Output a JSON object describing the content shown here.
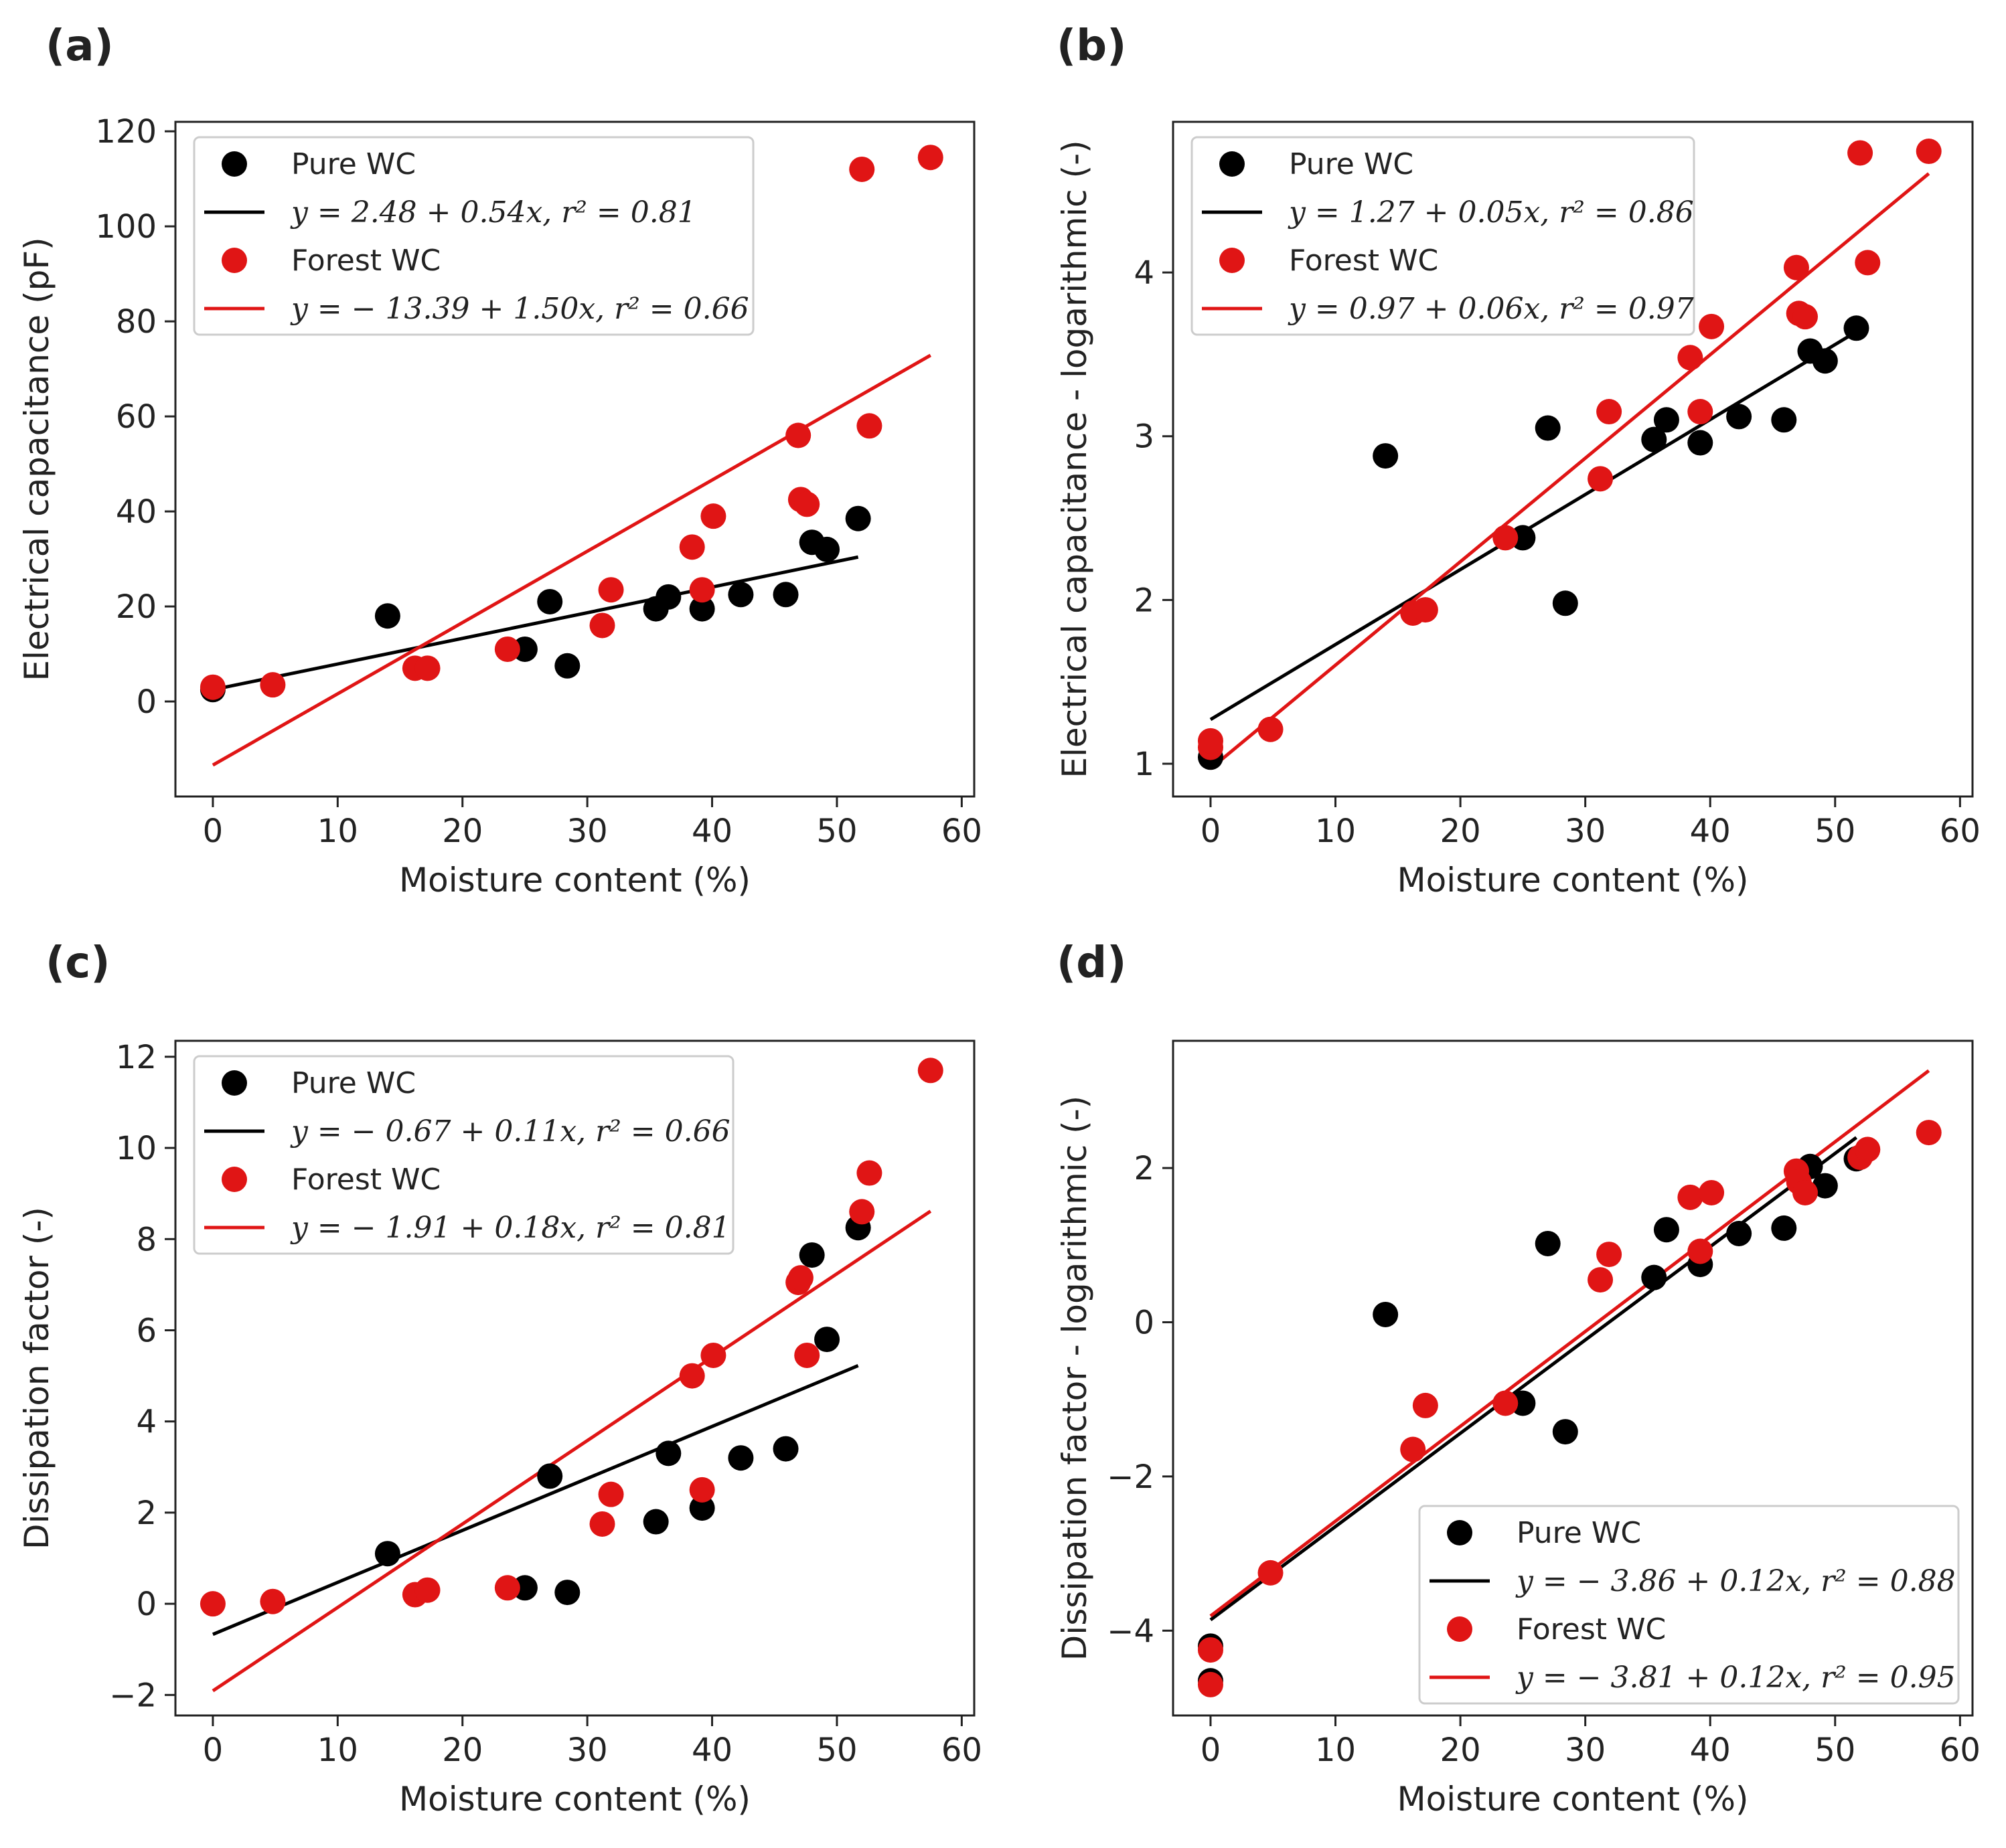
{
  "colors": {
    "pure": "#000000",
    "forest": "#e01515",
    "axis": "#222222",
    "legend_border": "#cccccc"
  },
  "chart_data": [
    {
      "id": "a",
      "type": "scatter",
      "panel_label": "(a)",
      "xlabel": "Moisture content (%)",
      "ylabel": "Electrical capacitance (pF)",
      "xlim": [
        -3,
        61
      ],
      "ylim": [
        -20,
        122
      ],
      "xticks": [
        0,
        10,
        20,
        30,
        40,
        50,
        60
      ],
      "yticks": [
        0,
        20,
        40,
        60,
        80,
        100,
        120
      ],
      "ytick_labels": [
        "0",
        "20",
        "40",
        "60",
        "80",
        "100",
        "120"
      ],
      "legend_position": "top-left",
      "series": [
        {
          "name": "Pure WC",
          "color_key": "pure",
          "x": [
            0,
            14,
            25,
            27,
            28.4,
            35.5,
            36.5,
            39.2,
            42.3,
            45.9,
            48,
            49.2,
            51.7
          ],
          "y": [
            2.5,
            18,
            11,
            21,
            7.5,
            19.5,
            22,
            19.5,
            22.5,
            22.5,
            33.5,
            32,
            38.5
          ],
          "fit_label": "y = 2.48 + 0.54x, r² = 0.81",
          "fit": {
            "intercept": 2.48,
            "slope": 0.54,
            "x_range": [
              0,
              51.7
            ]
          }
        },
        {
          "name": "Forest WC",
          "color_key": "forest",
          "x": [
            0,
            4.8,
            16.2,
            17.2,
            23.6,
            31.2,
            31.9,
            38.4,
            39.2,
            40.1,
            46.9,
            47.1,
            47.6,
            52,
            52.6,
            57.5
          ],
          "y": [
            3,
            3.5,
            7,
            7,
            11,
            16,
            23.5,
            32.5,
            23.5,
            39,
            56,
            42.5,
            41.5,
            112,
            58,
            114.5
          ],
          "fit_label": "y = − 13.39 + 1.50x, r² = 0.66",
          "fit": {
            "intercept": -13.39,
            "slope": 1.5,
            "x_range": [
              0,
              57.5
            ]
          }
        }
      ]
    },
    {
      "id": "b",
      "type": "scatter",
      "panel_label": "(b)",
      "xlabel": "Moisture content (%)",
      "ylabel": "Electrical capacitance - logarithmic (-)",
      "xlim": [
        -3,
        61
      ],
      "ylim": [
        0.8,
        4.92
      ],
      "xticks": [
        0,
        10,
        20,
        30,
        40,
        50,
        60
      ],
      "yticks": [
        1,
        2,
        3,
        4
      ],
      "ytick_labels": [
        "1",
        "2",
        "3",
        "4"
      ],
      "legend_position": "top-left",
      "series": [
        {
          "name": "Pure WC",
          "color_key": "pure",
          "x": [
            0,
            14,
            25,
            27,
            28.4,
            35.5,
            36.5,
            39.2,
            42.3,
            45.9,
            48,
            49.2,
            51.7
          ],
          "y": [
            1.04,
            2.88,
            2.38,
            3.05,
            1.98,
            2.98,
            3.1,
            2.96,
            3.12,
            3.1,
            3.52,
            3.46,
            3.66
          ],
          "fit_label": "y = 1.27 + 0.05x, r² = 0.86",
          "fit": {
            "intercept": 1.27,
            "slope": 0.0458,
            "x_range": [
              0,
              51.7
            ]
          }
        },
        {
          "name": "Forest WC",
          "color_key": "forest",
          "x": [
            0,
            0,
            4.8,
            16.2,
            17.2,
            23.6,
            31.2,
            31.9,
            38.4,
            39.2,
            40.1,
            46.9,
            47.1,
            47.6,
            52,
            52.6,
            57.5
          ],
          "y": [
            1.1,
            1.14,
            1.21,
            1.92,
            1.94,
            2.38,
            2.74,
            3.15,
            3.48,
            3.15,
            3.67,
            4.03,
            3.75,
            3.73,
            4.73,
            4.06,
            4.74
          ],
          "fit_label": "y = 0.97 + 0.06x, r² = 0.97",
          "fit": {
            "intercept": 0.97,
            "slope": 0.0632,
            "x_range": [
              0,
              57.5
            ]
          }
        }
      ]
    },
    {
      "id": "c",
      "type": "scatter",
      "panel_label": "(c)",
      "xlabel": "Moisture content (%)",
      "ylabel": "Dissipation factor (-)",
      "xlim": [
        -3,
        61
      ],
      "ylim": [
        -2.45,
        12.35
      ],
      "xticks": [
        0,
        10,
        20,
        30,
        40,
        50,
        60
      ],
      "yticks": [
        -2,
        0,
        2,
        4,
        6,
        8,
        10,
        12
      ],
      "ytick_labels": [
        "−2",
        "0",
        "2",
        "4",
        "6",
        "8",
        "10",
        "12"
      ],
      "legend_position": "top-left",
      "series": [
        {
          "name": "Pure WC",
          "color_key": "pure",
          "x": [
            14,
            25,
            27,
            28.4,
            35.5,
            36.5,
            39.2,
            42.3,
            45.9,
            48,
            49.2,
            51.7
          ],
          "y": [
            1.1,
            0.35,
            2.8,
            0.25,
            1.8,
            3.3,
            2.1,
            3.2,
            3.4,
            7.65,
            5.8,
            8.25
          ],
          "fit_label": "y = − 0.67 + 0.11x, r² = 0.66",
          "fit": {
            "intercept": -0.67,
            "slope": 0.114,
            "x_range": [
              0,
              51.7
            ]
          }
        },
        {
          "name": "Forest WC",
          "color_key": "forest",
          "x": [
            0,
            4.8,
            16.2,
            17.2,
            23.6,
            31.2,
            31.9,
            38.4,
            39.2,
            40.1,
            46.9,
            47.1,
            47.6,
            52,
            52.6,
            57.5
          ],
          "y": [
            0,
            0.05,
            0.2,
            0.3,
            0.35,
            1.75,
            2.4,
            5,
            2.5,
            5.45,
            7.05,
            7.15,
            5.45,
            8.6,
            9.45,
            11.7
          ],
          "fit_label": "y = − 1.91 + 0.18x, r² = 0.81",
          "fit": {
            "intercept": -1.91,
            "slope": 0.183,
            "x_range": [
              0,
              57.5
            ]
          }
        }
      ]
    },
    {
      "id": "d",
      "type": "scatter",
      "panel_label": "(d)",
      "xlabel": "Moisture content (%)",
      "ylabel": "Dissipation factor - logarithmic (-)",
      "xlim": [
        -3,
        61
      ],
      "ylim": [
        -5.1,
        3.65
      ],
      "xticks": [
        0,
        10,
        20,
        30,
        40,
        50,
        60
      ],
      "yticks": [
        -4,
        -2,
        0,
        2
      ],
      "ytick_labels": [
        "−4",
        "−2",
        "0",
        "2"
      ],
      "legend_position": "bottom-right",
      "series": [
        {
          "name": "Pure WC",
          "color_key": "pure",
          "x": [
            0,
            0,
            14,
            25,
            27,
            28.4,
            35.5,
            36.5,
            39.2,
            42.3,
            45.9,
            48,
            49.2,
            51.7
          ],
          "y": [
            -4.2,
            -4.65,
            0.1,
            -1.05,
            1.02,
            -1.42,
            0.58,
            1.2,
            0.75,
            1.15,
            1.22,
            2.02,
            1.77,
            2.12
          ],
          "fit_label": "y = − 3.86 + 0.12x, r² = 0.88",
          "fit": {
            "intercept": -3.86,
            "slope": 0.121,
            "x_range": [
              0,
              51.7
            ]
          }
        },
        {
          "name": "Forest WC",
          "color_key": "forest",
          "x": [
            0,
            0,
            4.8,
            16.2,
            17.2,
            23.6,
            31.2,
            31.9,
            38.4,
            39.2,
            40.1,
            46.9,
            47.1,
            47.6,
            52,
            52.6,
            57.5
          ],
          "y": [
            -4.25,
            -4.7,
            -3.25,
            -1.65,
            -1.08,
            -1.05,
            0.55,
            0.88,
            1.62,
            0.92,
            1.68,
            1.96,
            1.82,
            1.68,
            2.14,
            2.24,
            2.46
          ],
          "fit_label": "y = − 3.81 + 0.12x, r² = 0.95",
          "fit": {
            "intercept": -3.81,
            "slope": 0.123,
            "x_range": [
              0,
              57.5
            ]
          }
        }
      ]
    }
  ]
}
